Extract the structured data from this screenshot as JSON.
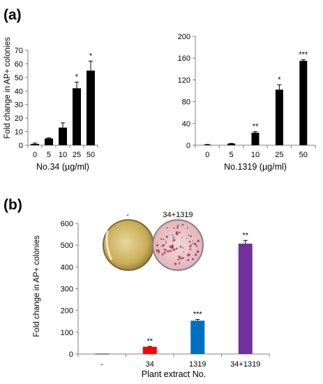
{
  "panels": {
    "a_label": "(a)",
    "b_label": "(b)"
  },
  "petri": {
    "left_label": "-",
    "right_label": "34+1319"
  },
  "chart_data": [
    {
      "type": "bar",
      "panel": "(a)",
      "categories": [
        "0",
        "5",
        "10",
        "25",
        "50"
      ],
      "values": [
        1.0,
        5.0,
        13.0,
        42.0,
        55.0
      ],
      "errors": [
        0.6,
        0.5,
        3.5,
        4.5,
        7.0
      ],
      "significance": [
        "",
        "",
        "",
        "*",
        "*"
      ],
      "xlabel": "No.34 (µg/ml)",
      "ylabel": "Fold change in AP+ colonies",
      "ylim": [
        0,
        70
      ],
      "yticks": [
        0,
        10,
        20,
        30,
        40,
        50,
        60,
        70
      ],
      "colors": [
        "#000000",
        "#000000",
        "#000000",
        "#000000",
        "#000000"
      ],
      "grid": false
    },
    {
      "type": "bar",
      "panel": "(a)",
      "categories": [
        "0",
        "5",
        "10",
        "25",
        "50"
      ],
      "values": [
        1.0,
        3.0,
        23.0,
        102.0,
        155.0
      ],
      "errors": [
        0.5,
        0.5,
        2.0,
        9.0,
        2.0
      ],
      "significance": [
        "",
        "",
        "**",
        "*",
        "***"
      ],
      "xlabel": "No.1319 (µg/ml)",
      "ylabel": "",
      "ylim": [
        0,
        200
      ],
      "yticks": [
        0,
        40,
        80,
        120,
        160,
        200
      ],
      "colors": [
        "#000000",
        "#000000",
        "#000000",
        "#000000",
        "#000000"
      ],
      "grid": false
    },
    {
      "type": "bar",
      "panel": "(b)",
      "categories": [
        "-",
        "34",
        "1319",
        "34+1319"
      ],
      "values": [
        1.0,
        33.0,
        153.0,
        507.0
      ],
      "errors": [
        0.0,
        2.0,
        6.0,
        15.0
      ],
      "significance": [
        "",
        "**",
        "***",
        "**"
      ],
      "xlabel": "Plant extract No.",
      "ylabel": "Fold change in AP+ colonies",
      "ylim": [
        0,
        600
      ],
      "yticks": [
        0,
        100,
        200,
        300,
        400,
        500,
        600
      ],
      "colors": [
        "#000000",
        "#ff0000",
        "#0070c0",
        "#7030a0"
      ],
      "grid": false
    }
  ]
}
